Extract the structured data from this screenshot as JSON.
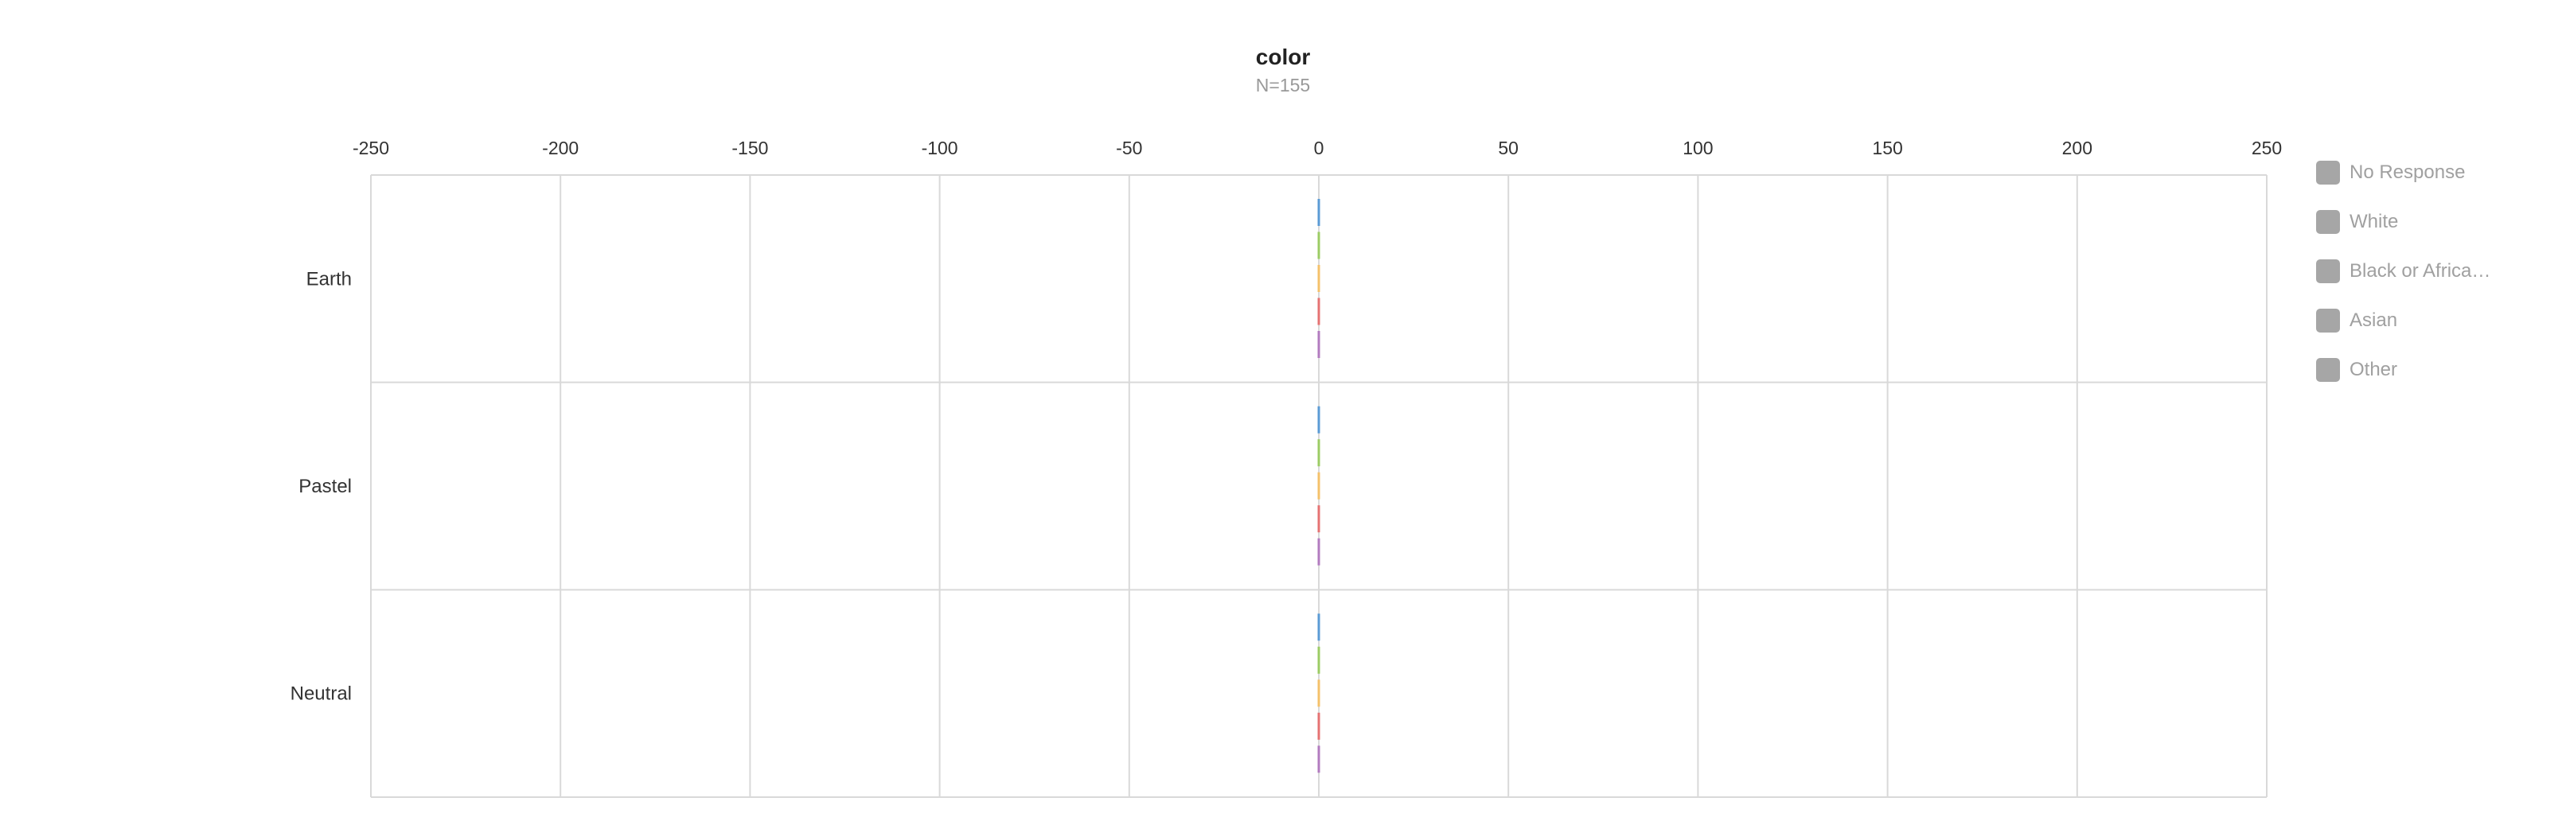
{
  "chart_data": {
    "type": "bar",
    "orientation": "horizontal",
    "title": "color",
    "subtitle": "N=155",
    "categories": [
      "Earth",
      "Pastel",
      "Neutral"
    ],
    "xlim": [
      -250,
      250
    ],
    "xticks": [
      "-250",
      "-200",
      "-150",
      "-100",
      "-50",
      "0",
      "50",
      "100",
      "150",
      "200",
      "250"
    ],
    "grid": true,
    "legend_position": "right",
    "series": [
      {
        "name": "No Response",
        "color": "#5b9bd5",
        "values": [
          0,
          0,
          0
        ]
      },
      {
        "name": "White",
        "color": "#9ccc65",
        "values": [
          0,
          0,
          0
        ]
      },
      {
        "name": "Black or Africa…",
        "color": "#f4c16b",
        "values": [
          0,
          0,
          0
        ]
      },
      {
        "name": "Asian",
        "color": "#e57373",
        "values": [
          0,
          0,
          0
        ]
      },
      {
        "name": "Other",
        "color": "#b27bbf",
        "values": [
          0,
          0,
          0
        ]
      }
    ],
    "legend_swatch_color": "#a6a6a6"
  }
}
